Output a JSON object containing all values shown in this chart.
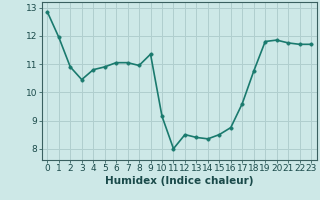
{
  "x": [
    0,
    1,
    2,
    3,
    4,
    5,
    6,
    7,
    8,
    9,
    10,
    11,
    12,
    13,
    14,
    15,
    16,
    17,
    18,
    19,
    20,
    21,
    22,
    23
  ],
  "y": [
    12.85,
    11.95,
    10.9,
    10.45,
    10.8,
    10.9,
    11.05,
    11.05,
    10.95,
    11.35,
    9.15,
    8.0,
    8.5,
    8.4,
    8.35,
    8.5,
    8.75,
    9.6,
    10.75,
    11.8,
    11.85,
    11.75,
    11.7,
    11.7
  ],
  "line_color": "#1a7a6e",
  "marker_color": "#1a7a6e",
  "bg_color": "#cde8e7",
  "grid_color": "#b0cece",
  "axis_color": "#3a6060",
  "xlabel": "Humidex (Indice chaleur)",
  "ylim": [
    7.6,
    13.2
  ],
  "xlim": [
    -0.5,
    23.5
  ],
  "yticks": [
    8,
    9,
    10,
    11,
    12,
    13
  ],
  "xticks": [
    0,
    1,
    2,
    3,
    4,
    5,
    6,
    7,
    8,
    9,
    10,
    11,
    12,
    13,
    14,
    15,
    16,
    17,
    18,
    19,
    20,
    21,
    22,
    23
  ],
  "xtick_labels": [
    "0",
    "1",
    "2",
    "3",
    "4",
    "5",
    "6",
    "7",
    "8",
    "9",
    "10",
    "11",
    "12",
    "13",
    "14",
    "15",
    "16",
    "17",
    "18",
    "19",
    "20",
    "21",
    "22",
    "23"
  ],
  "marker_size": 2.5,
  "line_width": 1.2,
  "font_color": "#1a4a4a",
  "xlabel_fontsize": 7.5,
  "tick_fontsize": 6.5
}
